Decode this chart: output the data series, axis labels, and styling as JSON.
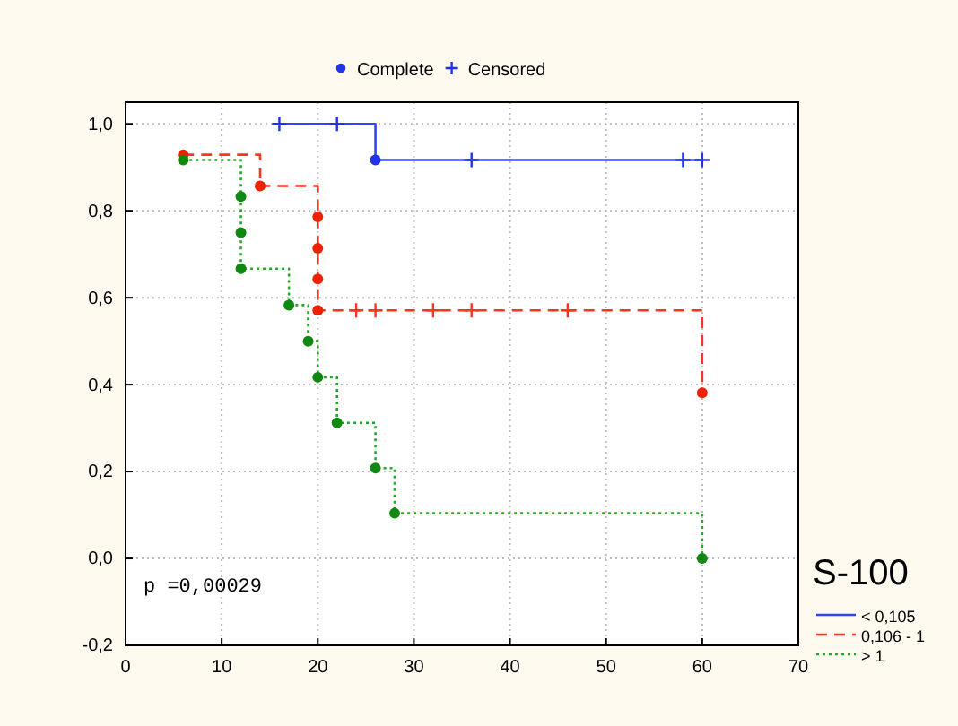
{
  "chart_data": {
    "type": "step",
    "legend_title": "S-100",
    "xlim": [
      0,
      70
    ],
    "xticks": [
      0,
      10,
      20,
      30,
      40,
      50,
      60,
      70
    ],
    "ylim": [
      -0.2,
      1.05
    ],
    "yticks": [
      {
        "value": -0.2,
        "label": "-0,2"
      },
      {
        "value": 0,
        "label": "0,0"
      },
      {
        "value": 0.2,
        "label": "0,2"
      },
      {
        "value": 0.4,
        "label": "0,4"
      },
      {
        "value": 0.6,
        "label": "0,6"
      },
      {
        "value": 0.8,
        "label": "0,8"
      },
      {
        "value": 1,
        "label": "1,0"
      }
    ],
    "grid": true,
    "legend": "top",
    "annotations": [
      "p =0,00029"
    ],
    "series": [
      {
        "name": "< 0,105",
        "color": "#3344ff",
        "line_style": "solid",
        "x": [
          16,
          26,
          60
        ],
        "values": [
          1,
          0.917,
          0.917
        ]
      },
      {
        "name": "0,106 - 1",
        "color": "#ff3322",
        "line_style": "dashed",
        "x": [
          6,
          14,
          20,
          20,
          20,
          20,
          60
        ],
        "values": [
          0.929,
          0.857,
          0.786,
          0.714,
          0.643,
          0.571,
          0.381
        ]
      },
      {
        "name": "> 1",
        "color": "#22aa22",
        "line_style": "dotted",
        "x": [
          6,
          12,
          12,
          12,
          17,
          19,
          20,
          22,
          26,
          28,
          60
        ],
        "values": [
          0.917,
          0.833,
          0.75,
          0.667,
          0.583,
          0.5,
          0.417,
          0.312,
          0.208,
          0.104,
          0
        ]
      },
      {
        "name": "Complete",
        "type": "scatter",
        "marker": "circle",
        "color": "#2233ee",
        "x": [
          26,
          6,
          14,
          20,
          20,
          20,
          20,
          60,
          6,
          12,
          12,
          12,
          17,
          19,
          20,
          22,
          26,
          28,
          60
        ],
        "values": [
          0.917,
          0.929,
          0.857,
          0.786,
          0.714,
          0.643,
          0.571,
          0.381,
          0.917,
          0.833,
          0.75,
          0.667,
          0.583,
          0.5,
          0.417,
          0.312,
          0.208,
          0.104,
          0
        ],
        "colors": [
          "#2233ee",
          "#ee2200",
          "#ee2200",
          "#ee2200",
          "#ee2200",
          "#ee2200",
          "#ee2200",
          "#ee2200",
          "#118811",
          "#118811",
          "#118811",
          "#118811",
          "#118811",
          "#118811",
          "#118811",
          "#118811",
          "#118811",
          "#118811",
          "#118811"
        ]
      },
      {
        "name": "Censored",
        "type": "scatter",
        "marker": "cross",
        "color": "#2233ee",
        "x": [
          16,
          22,
          36,
          58,
          60,
          24,
          26,
          32,
          36,
          46
        ],
        "values": [
          1,
          1,
          0.917,
          0.917,
          0.917,
          0.571,
          0.571,
          0.571,
          0.571,
          0.571
        ],
        "colors": [
          "#2233ee",
          "#2233ee",
          "#2233ee",
          "#2233ee",
          "#2233ee",
          "#ff3322",
          "#ff3322",
          "#ff3322",
          "#ff3322",
          "#ff3322"
        ]
      }
    ]
  }
}
